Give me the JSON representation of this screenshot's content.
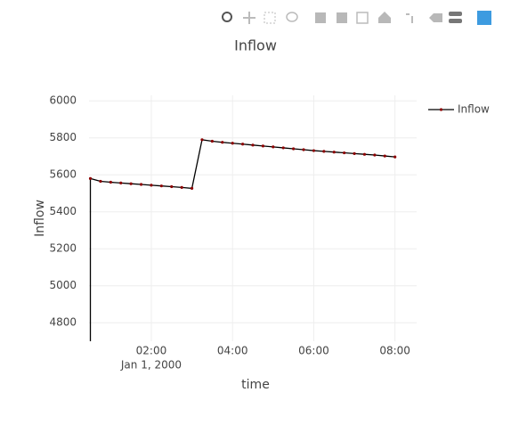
{
  "chart_data": {
    "type": "line",
    "title": "Inflow",
    "x_label": "time",
    "y_label": "Inflow",
    "x_date_label": "Jan 1, 2000",
    "x": [
      "2000-01-01 00:30",
      "2000-01-01 00:30",
      "2000-01-01 00:45",
      "2000-01-01 01:00",
      "2000-01-01 01:15",
      "2000-01-01 01:30",
      "2000-01-01 01:45",
      "2000-01-01 02:00",
      "2000-01-01 02:15",
      "2000-01-01 02:30",
      "2000-01-01 02:45",
      "2000-01-01 03:00",
      "2000-01-01 03:15",
      "2000-01-01 03:30",
      "2000-01-01 03:45",
      "2000-01-01 04:00",
      "2000-01-01 04:15",
      "2000-01-01 04:30",
      "2000-01-01 04:45",
      "2000-01-01 05:00",
      "2000-01-01 05:15",
      "2000-01-01 05:30",
      "2000-01-01 05:45",
      "2000-01-01 06:00",
      "2000-01-01 06:15",
      "2000-01-01 06:30",
      "2000-01-01 06:45",
      "2000-01-01 07:00",
      "2000-01-01 07:15",
      "2000-01-01 07:30",
      "2000-01-01 07:45",
      "2000-01-01 08:00"
    ],
    "series": [
      {
        "name": "Inflow",
        "color": "#000000",
        "marker_color": "#8b0000",
        "values": [
          4700,
          5580,
          5565,
          5560,
          5556,
          5552,
          5548,
          5544,
          5540,
          5536,
          5532,
          5527,
          5790,
          5782,
          5776,
          5771,
          5766,
          5761,
          5756,
          5751,
          5746,
          5741,
          5736,
          5731,
          5727,
          5723,
          5719,
          5715,
          5711,
          5707,
          5702,
          5697
        ]
      }
    ],
    "xlim": [
      "2000-01-01 00:28",
      "2000-01-01 08:32"
    ],
    "xticks": [
      {
        "value": "2000-01-01 02:00",
        "label": "02:00"
      },
      {
        "value": "2000-01-01 04:00",
        "label": "04:00"
      },
      {
        "value": "2000-01-01 06:00",
        "label": "06:00"
      },
      {
        "value": "2000-01-01 08:00",
        "label": "08:00"
      }
    ],
    "ylim": [
      4700,
      6030
    ],
    "yticks": [
      4800,
      5000,
      5200,
      5400,
      5600,
      5800,
      6000
    ],
    "grid": true,
    "legend": "right"
  }
}
